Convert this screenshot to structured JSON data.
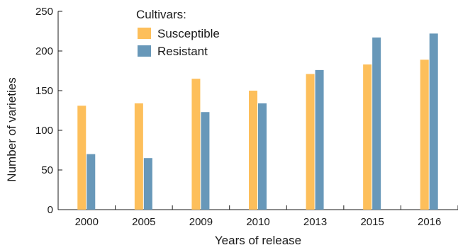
{
  "chart_data": {
    "type": "bar",
    "title": "",
    "xlabel": "Years of release",
    "ylabel": "Number of varieties",
    "ylim": [
      0,
      250
    ],
    "yticks": [
      0,
      50,
      100,
      150,
      200,
      250
    ],
    "grid": false,
    "legend": {
      "title": "Cultivars:",
      "position": "top-left"
    },
    "categories": [
      "2000",
      "2005",
      "2009",
      "2010",
      "2013",
      "2015",
      "2016"
    ],
    "series": [
      {
        "name": "Susceptible",
        "color": "#FDBF5B",
        "values": [
          131,
          134,
          165,
          150,
          171,
          183,
          189
        ]
      },
      {
        "name": "Resistant",
        "color": "#6898B9",
        "values": [
          70,
          65,
          123,
          134,
          176,
          217,
          222
        ]
      }
    ]
  }
}
